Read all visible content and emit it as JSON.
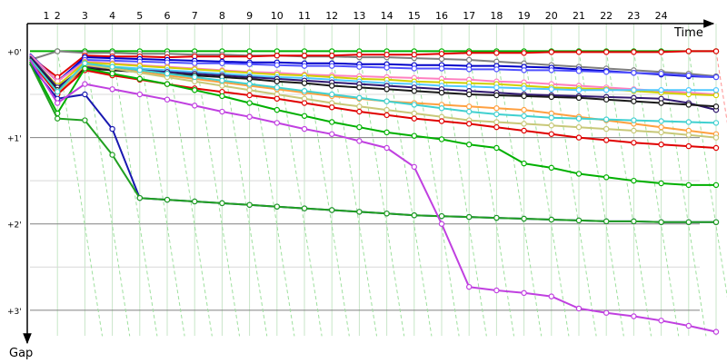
{
  "chart_data": {
    "type": "line",
    "x_axis_title": "Time",
    "y_axis_title": "Gap",
    "x": [
      1,
      2,
      3,
      4,
      5,
      6,
      7,
      8,
      9,
      10,
      11,
      12,
      13,
      14,
      15,
      16,
      17,
      18,
      19,
      20,
      21,
      22,
      23,
      24,
      25,
      26
    ],
    "x_tick_labels": [
      "1",
      "2",
      "3",
      "4",
      "5",
      "6",
      "7",
      "8",
      "9",
      "10",
      "11",
      "12",
      "13",
      "14",
      "15",
      "16",
      "17",
      "18",
      "19",
      "20",
      "21",
      "22",
      "23",
      "24"
    ],
    "y_tick_labels": [
      "+0'",
      "+1'",
      "+2'",
      "+3'"
    ],
    "y_ticks_min": [
      0,
      1,
      2,
      3
    ],
    "xlim": [
      1,
      26
    ],
    "ylim": [
      -0.32,
      3.38
    ],
    "grid": true,
    "series": [
      {
        "color": "#00b000",
        "values": [
          0.0,
          0.0,
          0.0,
          0.0,
          0.0,
          0.0,
          0.0,
          0.0,
          0.0,
          0.0,
          0.0,
          0.0,
          0.0,
          0.0,
          0.0,
          0.0,
          0.0,
          0.0,
          0.0,
          0.0,
          0.0,
          0.0,
          0.0,
          0.0,
          0.0,
          0.0
        ]
      },
      {
        "color": "#7f7f7f",
        "values": [
          0.1,
          0.0,
          0.02,
          0.02,
          0.03,
          0.03,
          0.04,
          0.04,
          0.05,
          0.05,
          0.06,
          0.06,
          0.07,
          0.07,
          0.08,
          0.09,
          0.1,
          0.12,
          0.14,
          0.16,
          0.18,
          0.2,
          0.22,
          0.24,
          0.26,
          0.29
        ]
      },
      {
        "color": "#e00000",
        "values": [
          0.06,
          0.3,
          0.05,
          0.06,
          0.06,
          0.07,
          0.06,
          0.06,
          0.06,
          0.05,
          0.05,
          0.05,
          0.04,
          0.04,
          0.04,
          0.03,
          0.02,
          0.02,
          0.02,
          0.01,
          0.01,
          0.01,
          0.01,
          0.01,
          0.0,
          0.0
        ]
      },
      {
        "color": "#0000c8",
        "values": [
          0.03,
          0.35,
          0.07,
          0.08,
          0.09,
          0.1,
          0.11,
          0.12,
          0.13,
          0.13,
          0.14,
          0.14,
          0.15,
          0.15,
          0.16,
          0.16,
          0.17,
          0.17,
          0.18,
          0.19,
          0.21,
          0.23,
          0.25,
          0.27,
          0.29,
          0.3
        ]
      },
      {
        "color": "#5050ff",
        "values": [
          0.05,
          0.35,
          0.1,
          0.11,
          0.12,
          0.13,
          0.14,
          0.14,
          0.15,
          0.16,
          0.17,
          0.17,
          0.18,
          0.19,
          0.2,
          0.2,
          0.21,
          0.21,
          0.22,
          0.22,
          0.23,
          0.24,
          0.25,
          0.26,
          0.28,
          0.3
        ]
      },
      {
        "color": "#ff80c0",
        "values": [
          0.04,
          0.35,
          0.12,
          0.14,
          0.16,
          0.18,
          0.2,
          0.22,
          0.24,
          0.25,
          0.27,
          0.28,
          0.29,
          0.3,
          0.31,
          0.32,
          0.33,
          0.35,
          0.36,
          0.38,
          0.4,
          0.42,
          0.44,
          0.46,
          0.48,
          0.5
        ]
      },
      {
        "color": "#d0d000",
        "values": [
          0.07,
          0.4,
          0.13,
          0.15,
          0.17,
          0.19,
          0.21,
          0.23,
          0.25,
          0.27,
          0.28,
          0.3,
          0.32,
          0.33,
          0.35,
          0.36,
          0.37,
          0.38,
          0.4,
          0.42,
          0.43,
          0.44,
          0.46,
          0.48,
          0.5,
          0.51
        ]
      },
      {
        "color": "#50c8ff",
        "values": [
          0.06,
          0.45,
          0.16,
          0.18,
          0.2,
          0.22,
          0.24,
          0.26,
          0.28,
          0.3,
          0.31,
          0.33,
          0.35,
          0.37,
          0.38,
          0.4,
          0.41,
          0.42,
          0.43,
          0.44,
          0.45,
          0.45,
          0.45,
          0.45,
          0.45,
          0.45
        ]
      },
      {
        "color": "#301870",
        "values": [
          0.06,
          0.42,
          0.18,
          0.2,
          0.22,
          0.24,
          0.26,
          0.28,
          0.3,
          0.32,
          0.34,
          0.36,
          0.38,
          0.4,
          0.42,
          0.44,
          0.46,
          0.48,
          0.5,
          0.51,
          0.52,
          0.53,
          0.54,
          0.55,
          0.6,
          0.68
        ]
      },
      {
        "color": "#1a1a1a",
        "values": [
          0.08,
          0.45,
          0.2,
          0.22,
          0.24,
          0.26,
          0.28,
          0.3,
          0.32,
          0.35,
          0.37,
          0.4,
          0.42,
          0.44,
          0.46,
          0.48,
          0.5,
          0.51,
          0.52,
          0.53,
          0.54,
          0.56,
          0.58,
          0.6,
          0.62,
          0.64
        ]
      },
      {
        "color": "#ffa040",
        "values": [
          0.1,
          0.5,
          0.16,
          0.2,
          0.24,
          0.28,
          0.32,
          0.36,
          0.4,
          0.44,
          0.48,
          0.52,
          0.55,
          0.58,
          0.6,
          0.62,
          0.64,
          0.66,
          0.68,
          0.72,
          0.76,
          0.8,
          0.84,
          0.88,
          0.92,
          0.96
        ]
      },
      {
        "color": "#c8c878",
        "values": [
          0.09,
          0.48,
          0.15,
          0.2,
          0.25,
          0.3,
          0.35,
          0.4,
          0.45,
          0.5,
          0.55,
          0.6,
          0.64,
          0.68,
          0.72,
          0.76,
          0.8,
          0.82,
          0.84,
          0.86,
          0.88,
          0.9,
          0.92,
          0.94,
          0.97,
          1.0
        ]
      },
      {
        "color": "#e00000",
        "values": [
          0.1,
          0.5,
          0.22,
          0.28,
          0.33,
          0.38,
          0.43,
          0.47,
          0.51,
          0.55,
          0.6,
          0.65,
          0.7,
          0.74,
          0.78,
          0.81,
          0.84,
          0.88,
          0.92,
          0.96,
          1.0,
          1.03,
          1.06,
          1.08,
          1.1,
          1.12
        ]
      },
      {
        "color": "#40d0d0",
        "values": [
          0.09,
          0.47,
          0.14,
          0.18,
          0.22,
          0.26,
          0.3,
          0.34,
          0.38,
          0.42,
          0.46,
          0.5,
          0.54,
          0.58,
          0.62,
          0.66,
          0.7,
          0.73,
          0.75,
          0.77,
          0.78,
          0.79,
          0.8,
          0.81,
          0.82,
          0.83
        ]
      },
      {
        "color": "#00b000",
        "values": [
          0.12,
          0.72,
          0.2,
          0.26,
          0.32,
          0.38,
          0.45,
          0.52,
          0.6,
          0.68,
          0.75,
          0.82,
          0.88,
          0.94,
          0.98,
          1.02,
          1.08,
          1.12,
          1.3,
          1.35,
          1.42,
          1.46,
          1.5,
          1.53,
          1.55,
          1.55
        ]
      },
      {
        "color": "#1818b0",
        "values": [
          0.15,
          0.55,
          0.5,
          0.9,
          1.7,
          1.72,
          1.74,
          1.76,
          1.78,
          1.8,
          1.82,
          1.84,
          1.86,
          1.88,
          1.9,
          1.91,
          1.92,
          1.93,
          1.94,
          1.95,
          1.96,
          1.97,
          1.97,
          1.98,
          1.98,
          1.98
        ]
      },
      {
        "color": "#20a020",
        "values": [
          0.14,
          0.78,
          0.8,
          1.2,
          1.7,
          1.72,
          1.74,
          1.76,
          1.78,
          1.8,
          1.82,
          1.84,
          1.86,
          1.88,
          1.9,
          1.91,
          1.92,
          1.93,
          1.94,
          1.95,
          1.96,
          1.97,
          1.97,
          1.98,
          1.98,
          1.98
        ]
      },
      {
        "color": "#c040e0",
        "values": [
          0.1,
          0.6,
          0.38,
          0.44,
          0.5,
          0.56,
          0.63,
          0.7,
          0.76,
          0.83,
          0.9,
          0.96,
          1.04,
          1.12,
          1.34,
          2.0,
          2.73,
          2.77,
          2.8,
          2.84,
          2.98,
          3.03,
          3.07,
          3.12,
          3.18,
          3.25
        ]
      }
    ]
  }
}
